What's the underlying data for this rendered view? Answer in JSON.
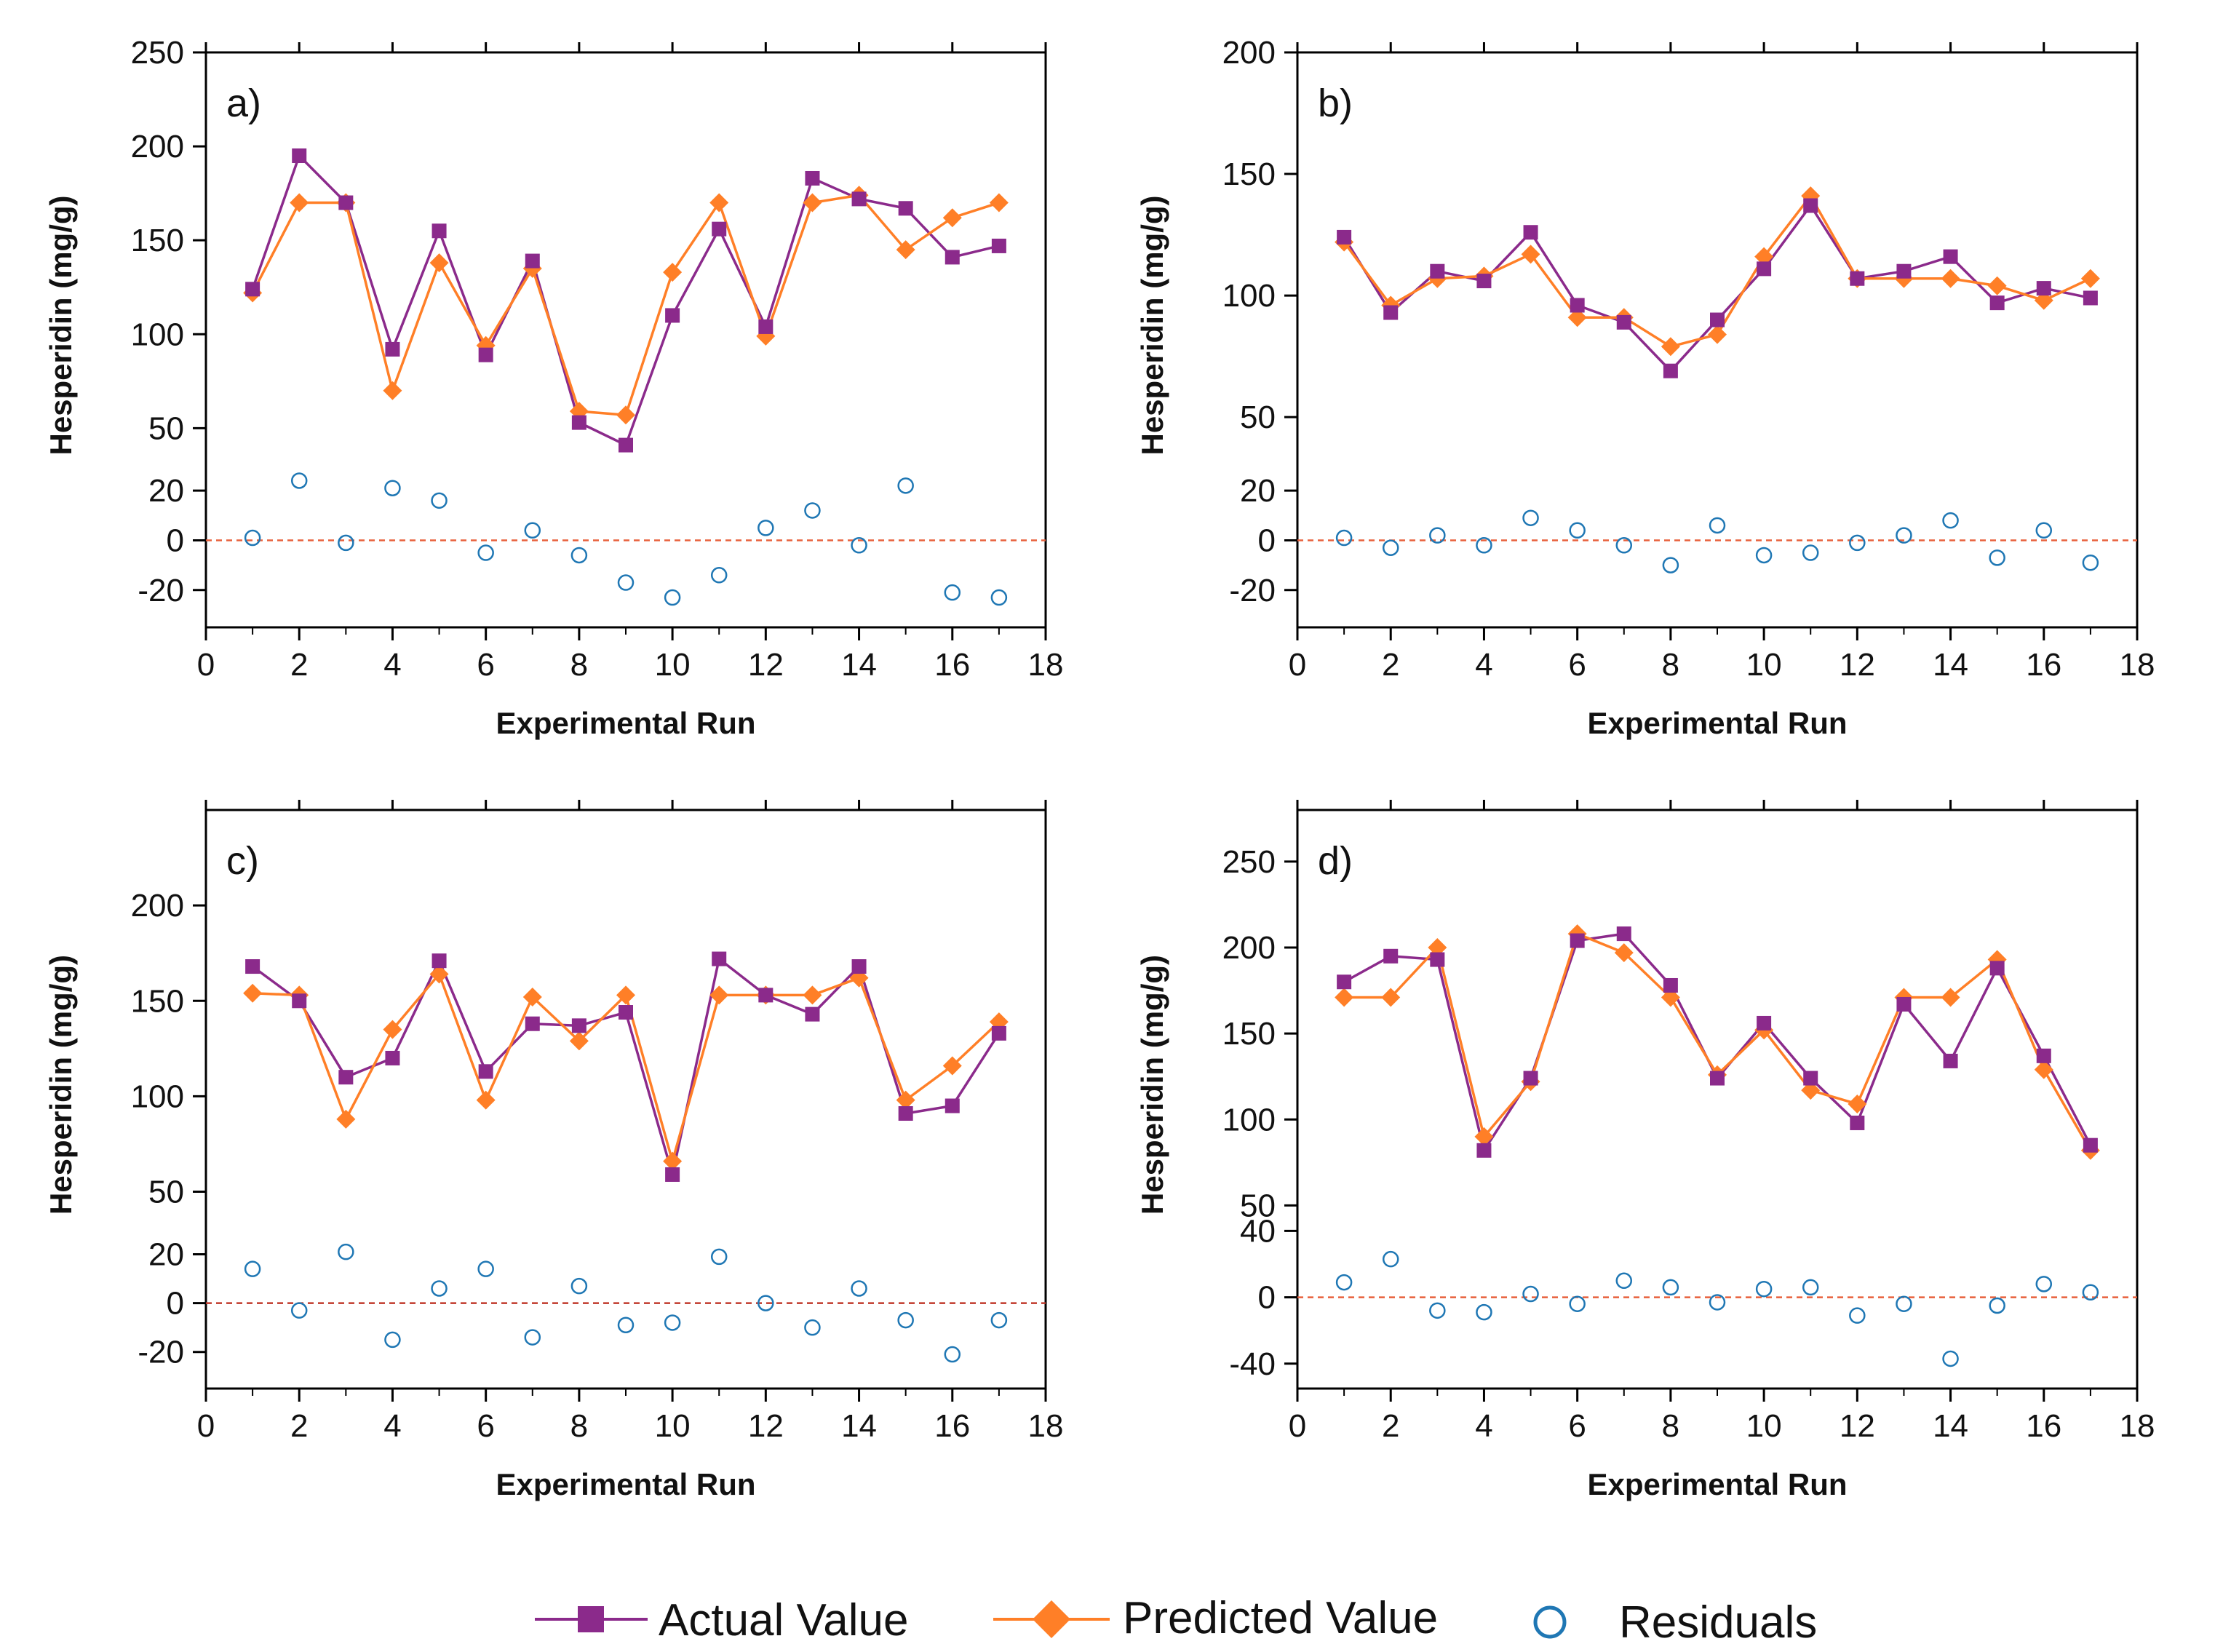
{
  "colors": {
    "actual": "#8B2A8B",
    "predicted": "#FF7F27",
    "residuals": "#1F77B4",
    "zero_line": "#E8603C",
    "zero_line_c": "#C0392B"
  },
  "legend": {
    "actual_label": "Actual Value",
    "predicted_label": "Predicted Value",
    "residuals_label": "Residuals"
  },
  "chart_data": [
    {
      "type": "line",
      "panel_label": "a)",
      "xlabel": "Experimental Run",
      "ylabel": "Hesperidin (mg/g)",
      "xlim": [
        0,
        18
      ],
      "x_ticks": [
        0,
        2,
        4,
        6,
        8,
        10,
        12,
        14,
        16,
        18
      ],
      "upper_ylim": [
        30,
        250
      ],
      "upper_ticks": [
        50,
        100,
        150,
        200,
        250
      ],
      "lower_ylim": [
        -35,
        30
      ],
      "lower_ticks": [
        -20,
        0,
        20
      ],
      "x": [
        1,
        2,
        3,
        4,
        5,
        6,
        7,
        8,
        9,
        10,
        11,
        12,
        13,
        14,
        15,
        16,
        17
      ],
      "series": [
        {
          "name": "Actual Value",
          "values": [
            124,
            195,
            170,
            92,
            155,
            89,
            139,
            53,
            41,
            110,
            156,
            104,
            183,
            172,
            167,
            141,
            147
          ]
        },
        {
          "name": "Predicted Value",
          "values": [
            122,
            170,
            170,
            70,
            138,
            94,
            135,
            59,
            57,
            133,
            170,
            99,
            170,
            174,
            145,
            162,
            170
          ]
        },
        {
          "name": "Residuals",
          "values": [
            1,
            24,
            -1,
            21,
            16,
            -5,
            4,
            -6,
            -17,
            -23,
            -14,
            5,
            12,
            -2,
            22,
            -21,
            -23
          ]
        }
      ]
    },
    {
      "type": "line",
      "panel_label": "b)",
      "xlabel": "Experimental Run",
      "ylabel": "Hesperidin (mg/g)",
      "xlim": [
        0,
        18
      ],
      "x_ticks": [
        0,
        2,
        4,
        6,
        8,
        10,
        12,
        14,
        16,
        18
      ],
      "upper_ylim": [
        30,
        200
      ],
      "upper_ticks": [
        50,
        100,
        150,
        200
      ],
      "lower_ylim": [
        -35,
        30
      ],
      "lower_ticks": [
        -20,
        0,
        20
      ],
      "x": [
        1,
        2,
        3,
        4,
        5,
        6,
        7,
        8,
        9,
        10,
        11,
        12,
        13,
        14,
        15,
        16,
        17
      ],
      "series": [
        {
          "name": "Actual Value",
          "values": [
            124,
            93,
            110,
            106,
            126,
            96,
            89,
            69,
            90,
            111,
            137,
            107,
            110,
            116,
            97,
            103,
            99
          ]
        },
        {
          "name": "Predicted Value",
          "values": [
            122,
            96,
            107,
            108,
            117,
            91,
            91,
            79,
            84,
            116,
            141,
            107,
            107,
            107,
            104,
            98,
            107
          ]
        },
        {
          "name": "Residuals",
          "values": [
            1,
            -3,
            2,
            -2,
            9,
            4,
            -2,
            -10,
            6,
            -6,
            -5,
            -1,
            2,
            8,
            -7,
            4,
            -9
          ]
        }
      ]
    },
    {
      "type": "line",
      "panel_label": "c)",
      "xlabel": "Experimental Run",
      "ylabel": "Hesperidin (mg/g)",
      "xlim": [
        0,
        18
      ],
      "x_ticks": [
        0,
        2,
        4,
        6,
        8,
        10,
        12,
        14,
        16,
        18
      ],
      "upper_ylim": [
        30,
        250
      ],
      "upper_ticks": [
        50,
        100,
        150,
        200
      ],
      "lower_ylim": [
        -35,
        30
      ],
      "lower_ticks": [
        -20,
        0,
        20
      ],
      "x": [
        1,
        2,
        3,
        4,
        5,
        6,
        7,
        8,
        9,
        10,
        11,
        12,
        13,
        14,
        15,
        16,
        17
      ],
      "series": [
        {
          "name": "Actual Value",
          "values": [
            168,
            150,
            110,
            120,
            171,
            113,
            138,
            137,
            144,
            59,
            172,
            153,
            143,
            168,
            91,
            95,
            133
          ]
        },
        {
          "name": "Predicted Value",
          "values": [
            154,
            153,
            88,
            135,
            164,
            98,
            152,
            129,
            153,
            66,
            153,
            153,
            153,
            162,
            98,
            116,
            139
          ]
        },
        {
          "name": "Residuals",
          "values": [
            14,
            -3,
            21,
            -15,
            6,
            14,
            -14,
            7,
            -9,
            -8,
            19,
            0,
            -10,
            6,
            -7,
            -21,
            -7
          ]
        }
      ]
    },
    {
      "type": "line",
      "panel_label": "d)",
      "xlabel": "Experimental Run",
      "ylabel": "Hesperidin (mg/g)",
      "xlim": [
        0,
        18
      ],
      "x_ticks": [
        0,
        2,
        4,
        6,
        8,
        10,
        12,
        14,
        16,
        18
      ],
      "upper_ylim": [
        40,
        280
      ],
      "upper_ticks": [
        50,
        100,
        150,
        200,
        250
      ],
      "lower_ylim": [
        -55,
        45
      ],
      "lower_ticks": [
        -40,
        0,
        40
      ],
      "x": [
        1,
        2,
        3,
        4,
        5,
        6,
        7,
        8,
        9,
        10,
        11,
        12,
        13,
        14,
        15,
        16,
        17
      ],
      "series": [
        {
          "name": "Actual Value",
          "values": [
            180,
            195,
            193,
            82,
            124,
            204,
            208,
            178,
            124,
            156,
            124,
            98,
            167,
            134,
            188,
            137,
            85
          ]
        },
        {
          "name": "Predicted Value",
          "values": [
            171,
            171,
            200,
            90,
            122,
            208,
            197,
            171,
            126,
            152,
            117,
            109,
            171,
            171,
            193,
            129,
            82
          ]
        },
        {
          "name": "Residuals",
          "values": [
            9,
            23,
            -8,
            -9,
            2,
            -4,
            10,
            6,
            -3,
            5,
            6,
            -11,
            -4,
            -37,
            -5,
            8,
            3
          ]
        }
      ]
    }
  ]
}
